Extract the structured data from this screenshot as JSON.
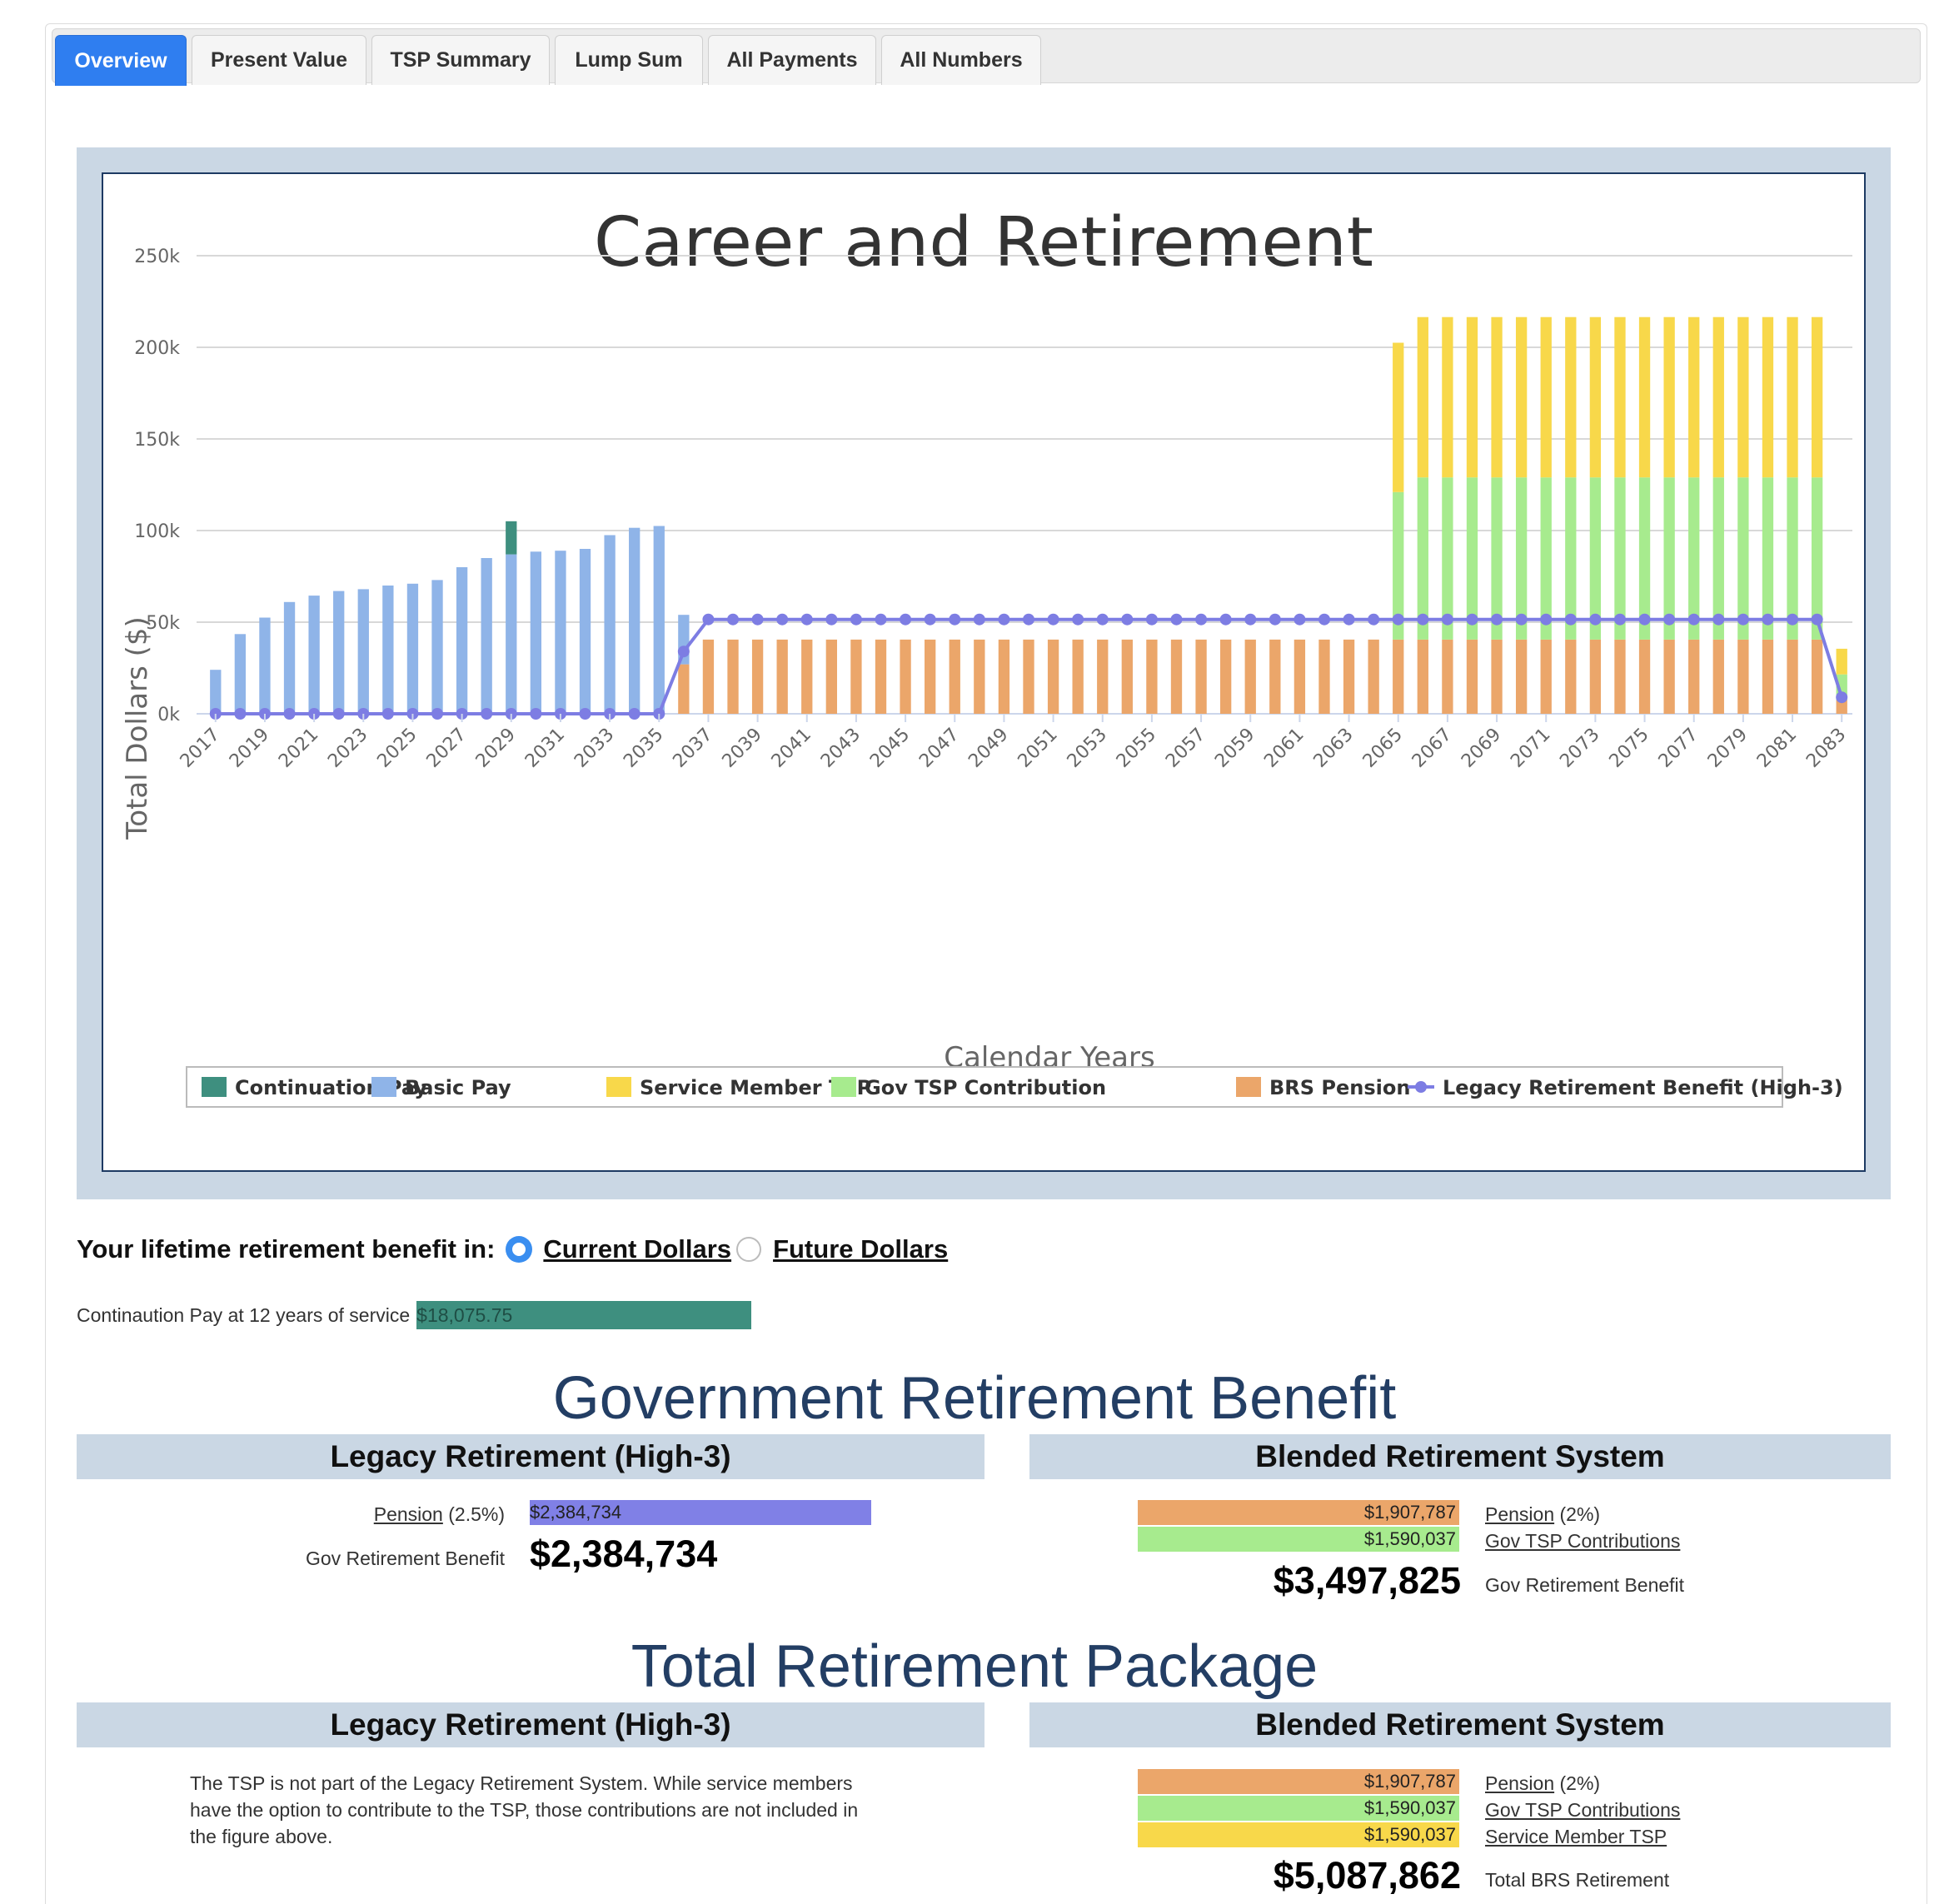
{
  "tabs": [
    {
      "label": "Overview",
      "active": true
    },
    {
      "label": "Present Value",
      "active": false
    },
    {
      "label": "TSP Summary",
      "active": false
    },
    {
      "label": "Lump Sum",
      "active": false
    },
    {
      "label": "All Payments",
      "active": false
    },
    {
      "label": "All Numbers",
      "active": false
    }
  ],
  "chart_data": {
    "type": "bar",
    "title": "Career and Retirement",
    "xlabel": "Calendar Years",
    "ylabel": "Total Dollars ($)",
    "ylim": [
      0,
      250000
    ],
    "yticks": [
      "0k",
      "50k",
      "100k",
      "150k",
      "200k",
      "250k"
    ],
    "x_start": 2017,
    "x_end": 2083,
    "xtick_labels": [
      "2017",
      "2019",
      "2021",
      "2023",
      "2025",
      "2027",
      "2029",
      "2031",
      "2033",
      "2035",
      "2037",
      "2039",
      "2041",
      "2043",
      "2045",
      "2047",
      "2049",
      "2051",
      "2053",
      "2055",
      "2057",
      "2059",
      "2061",
      "2063",
      "2065",
      "2067",
      "2069",
      "2071",
      "2073",
      "2075",
      "2077",
      "2079",
      "2081",
      "2083"
    ],
    "stacked": true,
    "legend_position": "bottom",
    "series": [
      {
        "name": "Continuation Pay",
        "color": "#3e8f7f",
        "kind": "bar",
        "values": [
          0,
          0,
          0,
          0,
          0,
          0,
          0,
          0,
          0,
          0,
          0,
          0,
          18076,
          0,
          0,
          0,
          0,
          0,
          0,
          0,
          0,
          0,
          0,
          0,
          0,
          0,
          0,
          0,
          0,
          0,
          0,
          0,
          0,
          0,
          0,
          0,
          0,
          0,
          0,
          0,
          0,
          0,
          0,
          0,
          0,
          0,
          0,
          0,
          0,
          0,
          0,
          0,
          0,
          0,
          0,
          0,
          0,
          0,
          0,
          0,
          0,
          0,
          0,
          0,
          0,
          0,
          0
        ]
      },
      {
        "name": "Basic Pay",
        "color": "#8fb4e8",
        "kind": "bar",
        "values": [
          24000,
          43500,
          52500,
          61000,
          64500,
          67000,
          68000,
          70000,
          71000,
          73000,
          80000,
          85000,
          87000,
          88500,
          89000,
          90000,
          97500,
          101500,
          102500,
          27000,
          0,
          0,
          0,
          0,
          0,
          0,
          0,
          0,
          0,
          0,
          0,
          0,
          0,
          0,
          0,
          0,
          0,
          0,
          0,
          0,
          0,
          0,
          0,
          0,
          0,
          0,
          0,
          0,
          0,
          0,
          0,
          0,
          0,
          0,
          0,
          0,
          0,
          0,
          0,
          0,
          0,
          0,
          0,
          0,
          0,
          0,
          0
        ]
      },
      {
        "name": "Service Member TSP",
        "color": "#f8d84a",
        "kind": "bar",
        "values": [
          0,
          0,
          0,
          0,
          0,
          0,
          0,
          0,
          0,
          0,
          0,
          0,
          0,
          0,
          0,
          0,
          0,
          0,
          0,
          0,
          0,
          0,
          0,
          0,
          0,
          0,
          0,
          0,
          0,
          0,
          0,
          0,
          0,
          0,
          0,
          0,
          0,
          0,
          0,
          0,
          0,
          0,
          0,
          0,
          0,
          0,
          0,
          0,
          81500,
          87500,
          87500,
          87500,
          87500,
          87500,
          87500,
          87500,
          87500,
          87500,
          87500,
          87500,
          87500,
          87500,
          87500,
          87500,
          87500,
          87500,
          14000
        ]
      },
      {
        "name": "Gov TSP Contribution",
        "color": "#a7eb8e",
        "kind": "bar",
        "values": [
          0,
          0,
          0,
          0,
          0,
          0,
          0,
          0,
          0,
          0,
          0,
          0,
          0,
          0,
          0,
          0,
          0,
          0,
          0,
          0,
          0,
          0,
          0,
          0,
          0,
          0,
          0,
          0,
          0,
          0,
          0,
          0,
          0,
          0,
          0,
          0,
          0,
          0,
          0,
          0,
          0,
          0,
          0,
          0,
          0,
          0,
          0,
          0,
          80500,
          88500,
          88500,
          88500,
          88500,
          88500,
          88500,
          88500,
          88500,
          88500,
          88500,
          88500,
          88500,
          88500,
          88500,
          88500,
          88500,
          88500,
          14000
        ]
      },
      {
        "name": "BRS Pension",
        "color": "#eba66a",
        "kind": "bar",
        "values": [
          0,
          0,
          0,
          0,
          0,
          0,
          0,
          0,
          0,
          0,
          0,
          0,
          0,
          0,
          0,
          0,
          0,
          0,
          0,
          27000,
          40500,
          40500,
          40500,
          40500,
          40500,
          40500,
          40500,
          40500,
          40500,
          40500,
          40500,
          40500,
          40500,
          40500,
          40500,
          40500,
          40500,
          40500,
          40500,
          40500,
          40500,
          40500,
          40500,
          40500,
          40500,
          40500,
          40500,
          40500,
          40500,
          40500,
          40500,
          40500,
          40500,
          40500,
          40500,
          40500,
          40500,
          40500,
          40500,
          40500,
          40500,
          40500,
          40500,
          40500,
          40500,
          40500,
          7500
        ]
      },
      {
        "name": "Legacy Retirement Benefit (High-3)",
        "color": "#7d7de3",
        "kind": "line",
        "values": [
          0,
          0,
          0,
          0,
          0,
          0,
          0,
          0,
          0,
          0,
          0,
          0,
          0,
          0,
          0,
          0,
          0,
          0,
          0,
          34000,
          51500,
          51500,
          51500,
          51500,
          51500,
          51500,
          51500,
          51500,
          51500,
          51500,
          51500,
          51500,
          51500,
          51500,
          51500,
          51500,
          51500,
          51500,
          51500,
          51500,
          51500,
          51500,
          51500,
          51500,
          51500,
          51500,
          51500,
          51500,
          51500,
          51500,
          51500,
          51500,
          51500,
          51500,
          51500,
          51500,
          51500,
          51500,
          51500,
          51500,
          51500,
          51500,
          51500,
          51500,
          51500,
          51500,
          9000
        ]
      }
    ]
  },
  "selector": {
    "label": "Your lifetime retirement benefit in:",
    "option_current": "Current Dollars",
    "option_future": "Future Dollars",
    "selected": "Current Dollars"
  },
  "continuation": {
    "label": "Continaution Pay at 12 years of service",
    "value": "$18,075.75"
  },
  "gov_benefit": {
    "title": "Government Retirement Benefit",
    "legacy": {
      "heading": "Legacy Retirement (High-3)",
      "pension_link": "Pension",
      "pension_rate": " (2.5%)",
      "pension_value": "$2,384,734",
      "total_label": "Gov Retirement Benefit",
      "total_value": "$2,384,734"
    },
    "blended": {
      "heading": "Blended Retirement System",
      "pension_value": "$1,907,787",
      "pension_link": "Pension",
      "pension_rate": " (2%)",
      "gov_tsp_value": "$1,590,037",
      "gov_tsp_link": "Gov TSP Contributions",
      "total_value": "$3,497,825",
      "total_label": "Gov Retirement Benefit"
    }
  },
  "total_package": {
    "title": "Total Retirement Package",
    "legacy": {
      "heading": "Legacy Retirement (High-3)",
      "note": "The TSP is not part of the Legacy Retirement System. While service members have the option to contribute to the TSP, those contributions are not included in the figure above."
    },
    "blended": {
      "heading": "Blended Retirement System",
      "pension_value": "$1,907,787",
      "pension_link": "Pension",
      "pension_rate": " (2%)",
      "gov_tsp_value": "$1,590,037",
      "gov_tsp_link": "Gov TSP Contributions",
      "member_tsp_value": "$1,590,037",
      "member_tsp_link": "Service Member TSP",
      "total_value": "$5,087,862",
      "total_label": "Total BRS Retirement"
    }
  },
  "colors": {
    "accent": "#2f7ef0",
    "panel": "#cad7e4",
    "heading": "#233e64",
    "legacy_bar": "#8080e6",
    "pension": "#eba66a",
    "gov_tsp": "#a7eb8e",
    "member_tsp": "#f8d84a",
    "continuation": "#3e8f7f"
  }
}
